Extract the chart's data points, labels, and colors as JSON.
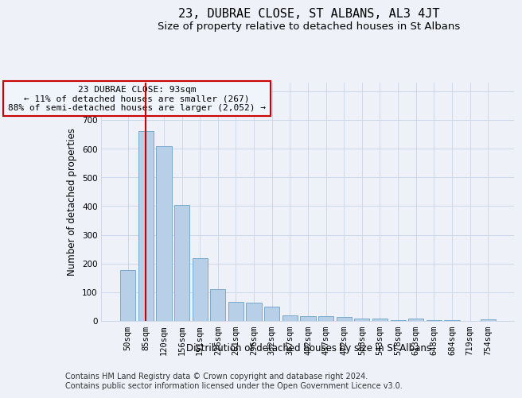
{
  "title": "23, DUBRAE CLOSE, ST ALBANS, AL3 4JT",
  "subtitle": "Size of property relative to detached houses in St Albans",
  "xlabel": "Distribution of detached houses by size in St Albans",
  "ylabel": "Number of detached properties",
  "footer_line1": "Contains HM Land Registry data © Crown copyright and database right 2024.",
  "footer_line2": "Contains public sector information licensed under the Open Government Licence v3.0.",
  "annotation_line1": "23 DUBRAE CLOSE: 93sqm",
  "annotation_line2": "← 11% of detached houses are smaller (267)",
  "annotation_line3": "88% of semi-detached houses are larger (2,052) →",
  "bar_labels": [
    "50sqm",
    "85sqm",
    "120sqm",
    "156sqm",
    "191sqm",
    "226sqm",
    "261sqm",
    "296sqm",
    "332sqm",
    "367sqm",
    "402sqm",
    "437sqm",
    "472sqm",
    "508sqm",
    "543sqm",
    "578sqm",
    "613sqm",
    "648sqm",
    "684sqm",
    "719sqm",
    "754sqm"
  ],
  "bar_values": [
    178,
    660,
    610,
    405,
    218,
    110,
    66,
    65,
    50,
    18,
    16,
    16,
    13,
    8,
    8,
    3,
    8,
    2,
    2,
    1,
    6
  ],
  "bar_color": "#b8cfe8",
  "bar_edge_color": "#7aaad0",
  "highlight_bar_index": 1,
  "highlight_line_color": "#cc0000",
  "annotation_box_edge_color": "#cc0000",
  "annotation_box_face_color": "#f0f4fb",
  "grid_color": "#ccd8ea",
  "background_color": "#eef2f8",
  "ylim": [
    0,
    830
  ],
  "yticks": [
    0,
    100,
    200,
    300,
    400,
    500,
    600,
    700,
    800
  ],
  "title_fontsize": 11,
  "subtitle_fontsize": 9.5,
  "axis_label_fontsize": 8.5,
  "tick_fontsize": 7.5,
  "annotation_fontsize": 8,
  "footer_fontsize": 7
}
